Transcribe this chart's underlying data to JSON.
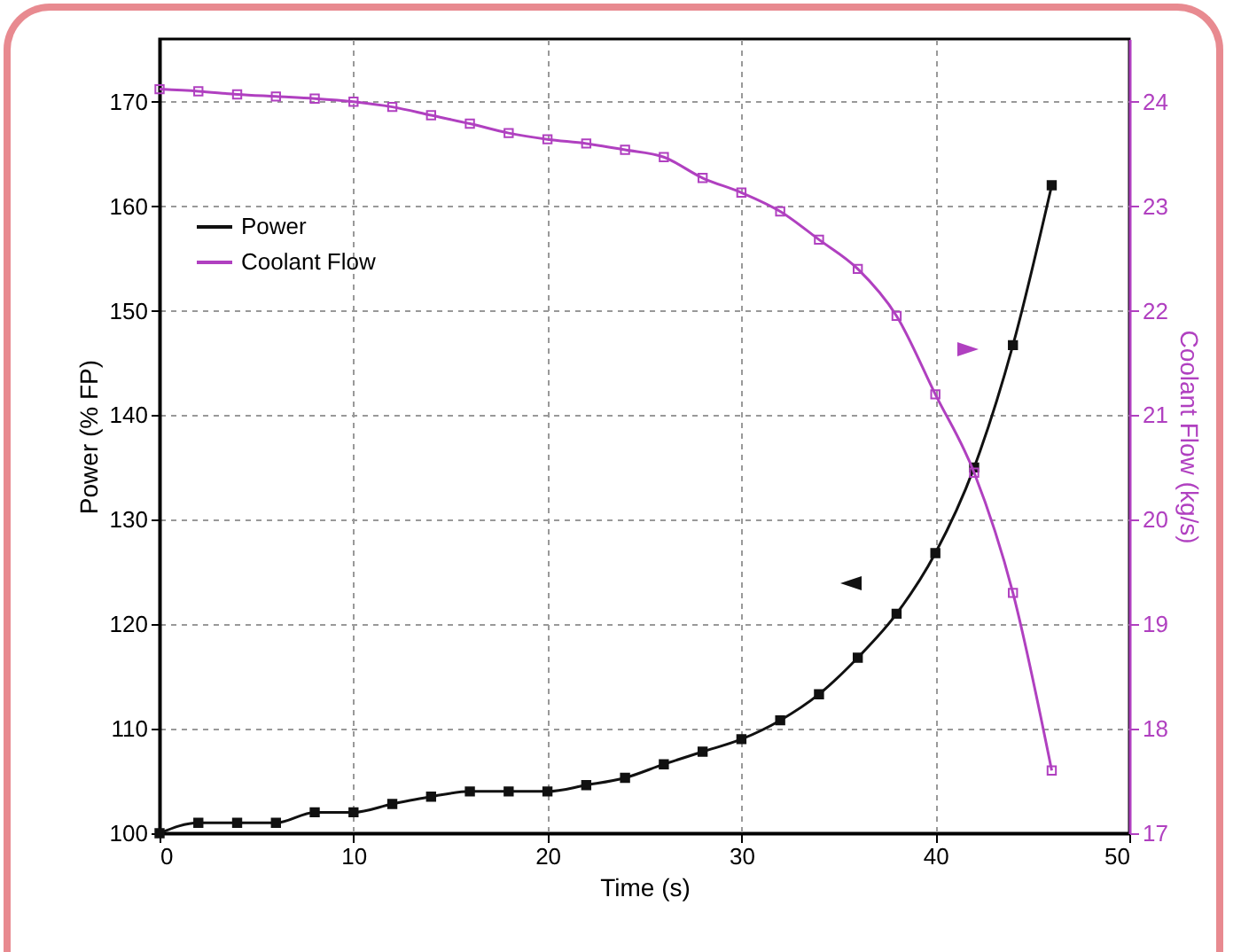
{
  "chart_data": {
    "type": "line",
    "xlabel": "Time (s)",
    "ylabel": "Power (% FP)",
    "y2label": "Coolant Flow (kg/s)",
    "x": [
      0,
      2,
      4,
      6,
      8,
      10,
      12,
      14,
      16,
      18,
      20,
      22,
      24,
      26,
      28,
      30,
      32,
      34,
      36,
      38,
      40,
      42,
      44,
      46
    ],
    "series": [
      {
        "name": "Power",
        "color": "#111111",
        "values": [
          100,
          101,
          101,
          101,
          102,
          102,
          102.8,
          103.5,
          104,
          104,
          104,
          104.6,
          105.3,
          106.6,
          107.8,
          109,
          110.8,
          113.3,
          116.8,
          121,
          126.8,
          135,
          146.7,
          162
        ]
      },
      {
        "name": "Coolant Flow",
        "color": "#b040c0",
        "axis": "y2",
        "values": [
          24.12,
          24.1,
          24.07,
          24.05,
          24.03,
          24.0,
          23.95,
          23.87,
          23.79,
          23.7,
          23.64,
          23.6,
          23.54,
          23.47,
          23.27,
          23.13,
          22.95,
          22.68,
          22.4,
          21.95,
          21.2,
          20.45,
          19.3,
          17.6
        ]
      }
    ],
    "xlim": [
      0,
      50
    ],
    "xticks": [
      0,
      10,
      20,
      30,
      40,
      50
    ],
    "ylim": [
      100,
      176
    ],
    "yticks": [
      100,
      110,
      120,
      130,
      140,
      150,
      160,
      170
    ],
    "y2lim": [
      17,
      24.6
    ],
    "y2ticks": [
      17,
      18,
      19,
      20,
      21,
      22,
      23,
      24
    ],
    "grid": true,
    "legend": "top left",
    "marker": "square",
    "line_style": "solid"
  }
}
